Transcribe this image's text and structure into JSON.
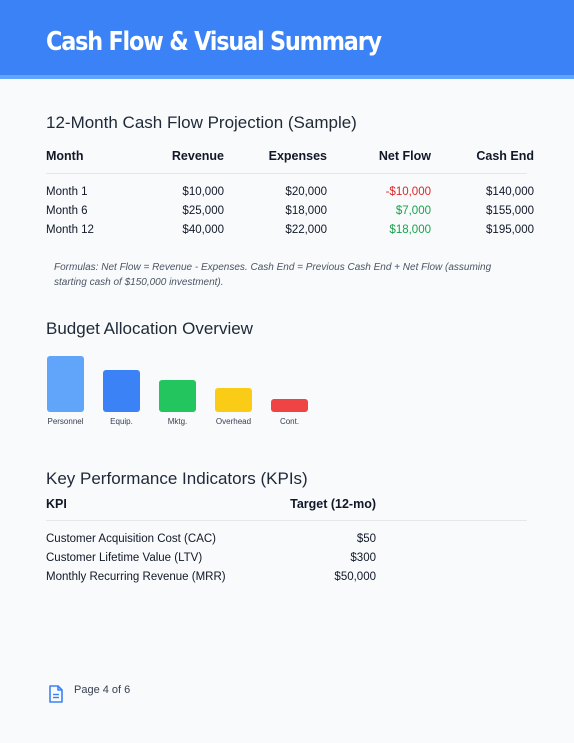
{
  "header": {
    "title": "Cash Flow & Visual Summary"
  },
  "cash_flow": {
    "title": "12-Month Cash Flow Projection (Sample)",
    "columns": [
      "Month",
      "Revenue",
      "Expenses",
      "Net Flow",
      "Cash End"
    ],
    "rows": [
      [
        "Month 1",
        "$10,000",
        "$20,000",
        "-$10,000",
        "$140,000"
      ],
      [
        "Month 6",
        "$25,000",
        "$18,000",
        "$7,000",
        "$155,000"
      ],
      [
        "Month 12",
        "$40,000",
        "$22,000",
        "$18,000",
        "$195,000"
      ]
    ],
    "note": "Formulas: Net Flow = Revenue - Expenses. Cash End = Previous Cash End + Net Flow (assuming starting cash of $150,000 investment)."
  },
  "budget": {
    "title": "Budget Allocation Overview",
    "chart_data": {
      "type": "bar",
      "categories": [
        "Personnel",
        "Equip.",
        "Mktg.",
        "Overhead",
        "Cont."
      ],
      "values": [
        56,
        42,
        32,
        24,
        13
      ],
      "colors": [
        "#60a5fa",
        "#3b82f6",
        "#22c55e",
        "#facc15",
        "#ef4444"
      ],
      "title": "",
      "xlabel": "",
      "ylabel": "",
      "grid": false,
      "axes": false
    }
  },
  "kpi": {
    "title": "Key Performance Indicators (KPIs)",
    "columns": [
      "KPI",
      "Target (12-mo)"
    ],
    "rows": [
      [
        "Customer Acquisition Cost (CAC)",
        "$50"
      ],
      [
        "Customer Lifetime Value (LTV)",
        "$300"
      ],
      [
        "Monthly Recurring Revenue (MRR)",
        "$50,000"
      ]
    ]
  },
  "footer": {
    "page_label": "Page 4 of 6",
    "icon": "document-icon"
  }
}
